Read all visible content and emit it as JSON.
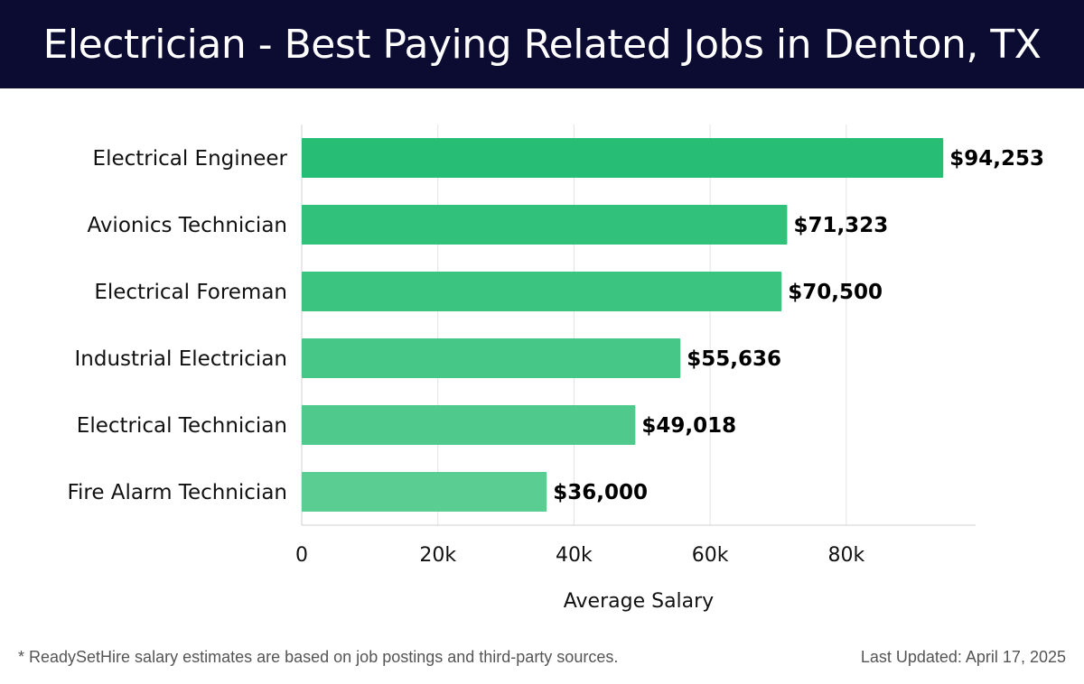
{
  "header": {
    "title": "Electrician - Best Paying Related Jobs in Denton, TX"
  },
  "chart_data": {
    "type": "bar",
    "orientation": "horizontal",
    "categories": [
      "Electrical Engineer",
      "Avionics Technician",
      "Electrical Foreman",
      "Industrial Electrician",
      "Electrical Technician",
      "Fire Alarm Technician"
    ],
    "values": [
      94253,
      71323,
      70500,
      55636,
      49018,
      36000
    ],
    "value_labels": [
      "$94,253",
      "$71,323",
      "$70,500",
      "$55,636",
      "$49,018",
      "$36,000"
    ],
    "xlabel": "Average Salary",
    "ylabel": "",
    "xlim": [
      0,
      99000
    ],
    "xticks": [
      0,
      20000,
      40000,
      60000,
      80000
    ],
    "xtick_labels": [
      "0",
      "20k",
      "40k",
      "60k",
      "80k"
    ],
    "grid": true,
    "bar_colors": [
      "#27bd74",
      "#32c17a",
      "#3bc47f",
      "#47c787",
      "#4fca8c",
      "#5acd93"
    ]
  },
  "footer": {
    "note": "* ReadySetHire salary estimates are based on job postings and third-party sources.",
    "updated": "Last Updated: April 17, 2025"
  }
}
